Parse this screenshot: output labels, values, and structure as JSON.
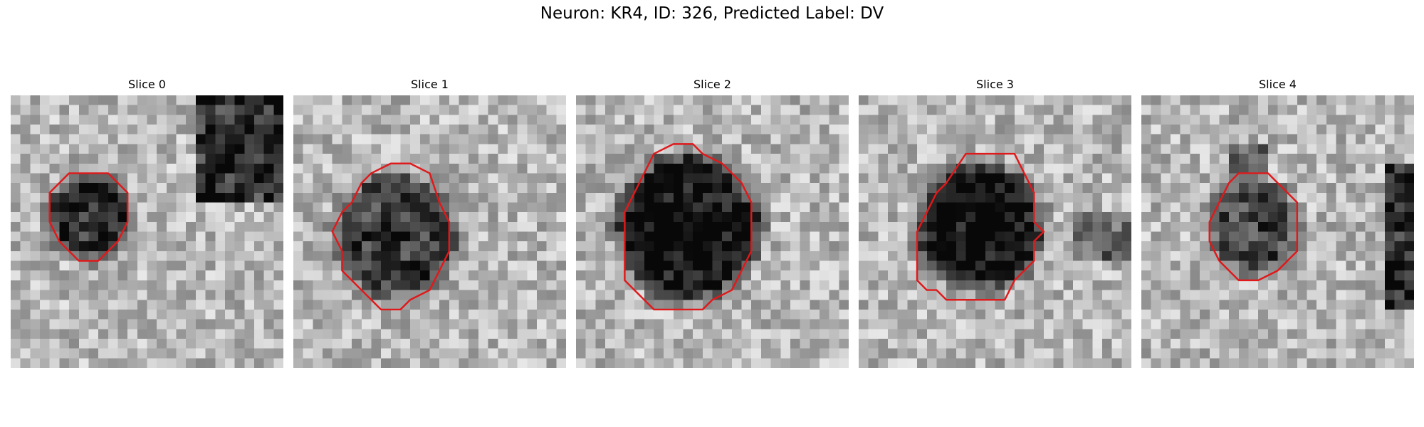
{
  "figure": {
    "title": "Neuron: KR4, ID: 326, Predicted Label: DV",
    "contour_color": "#e0191b",
    "panels": [
      {
        "title": "Slice 0",
        "blob_strength": 0.55,
        "contour": [
          [
            8,
            8
          ],
          [
            10,
            8
          ],
          [
            12,
            10
          ],
          [
            12,
            13
          ],
          [
            11,
            15
          ],
          [
            9,
            17
          ],
          [
            7,
            17
          ],
          [
            5,
            15
          ],
          [
            4,
            13
          ],
          [
            4,
            10
          ],
          [
            6,
            8
          ]
        ]
      },
      {
        "title": "Slice 1",
        "blob_strength": 0.5,
        "contour": [
          [
            10,
            7
          ],
          [
            12,
            7
          ],
          [
            14,
            8
          ],
          [
            15,
            11
          ],
          [
            16,
            13
          ],
          [
            16,
            16
          ],
          [
            15,
            18
          ],
          [
            14,
            20
          ],
          [
            12,
            21
          ],
          [
            11,
            22
          ],
          [
            9,
            22
          ],
          [
            7,
            20
          ],
          [
            6,
            19
          ],
          [
            5,
            18
          ],
          [
            5,
            16
          ],
          [
            4,
            14
          ],
          [
            5,
            12
          ],
          [
            6,
            11
          ],
          [
            7,
            9
          ],
          [
            8,
            8
          ]
        ]
      },
      {
        "title": "Slice 2",
        "blob_strength": 0.65,
        "contour": [
          [
            10,
            5
          ],
          [
            12,
            5
          ],
          [
            13,
            6
          ],
          [
            15,
            7
          ],
          [
            17,
            9
          ],
          [
            18,
            11
          ],
          [
            18,
            13
          ],
          [
            18,
            16
          ],
          [
            17,
            18
          ],
          [
            16,
            20
          ],
          [
            14,
            21
          ],
          [
            13,
            22
          ],
          [
            10,
            22
          ],
          [
            8,
            22
          ],
          [
            6,
            20
          ],
          [
            5,
            19
          ],
          [
            5,
            17
          ],
          [
            5,
            14
          ],
          [
            5,
            12
          ],
          [
            6,
            10
          ],
          [
            7,
            8
          ],
          [
            8,
            6
          ]
        ]
      },
      {
        "title": "Slice 3",
        "blob_strength": 0.68,
        "contour": [
          [
            11,
            6
          ],
          [
            13,
            6
          ],
          [
            16,
            6
          ],
          [
            17,
            8
          ],
          [
            18,
            10
          ],
          [
            18,
            13
          ],
          [
            19,
            14
          ],
          [
            18,
            15
          ],
          [
            18,
            17
          ],
          [
            16,
            19
          ],
          [
            15,
            21
          ],
          [
            11,
            21
          ],
          [
            9,
            21
          ],
          [
            8,
            20
          ],
          [
            7,
            20
          ],
          [
            6,
            19
          ],
          [
            6,
            16
          ],
          [
            6,
            14
          ],
          [
            7,
            12
          ],
          [
            8,
            10
          ],
          [
            9,
            9
          ]
        ]
      },
      {
        "title": "Slice 4",
        "blob_strength": 0.45,
        "contour": [
          [
            10,
            8
          ],
          [
            13,
            8
          ],
          [
            14,
            9
          ],
          [
            15,
            10
          ],
          [
            16,
            11
          ],
          [
            16,
            13
          ],
          [
            16,
            16
          ],
          [
            15,
            17
          ],
          [
            14,
            18
          ],
          [
            12,
            19
          ],
          [
            10,
            19
          ],
          [
            9,
            18
          ],
          [
            8,
            17
          ],
          [
            7,
            15
          ],
          [
            7,
            13
          ],
          [
            8,
            11
          ],
          [
            9,
            9
          ]
        ]
      }
    ]
  }
}
